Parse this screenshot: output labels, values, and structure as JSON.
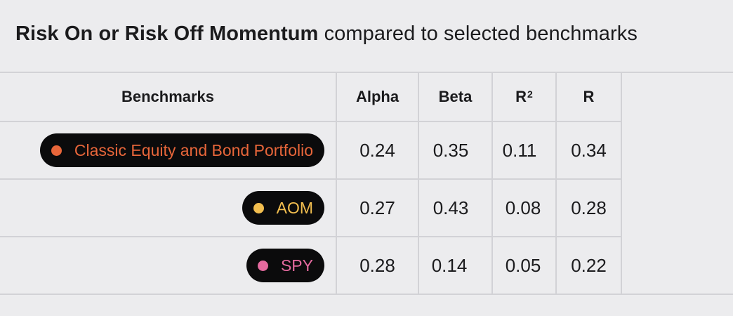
{
  "title": {
    "strong": "Risk On or Risk Off Momentum",
    "rest": " compared to selected benchmarks"
  },
  "table": {
    "headers": {
      "benchmarks": "Benchmarks",
      "alpha": "Alpha",
      "beta": "Beta",
      "r2_base": "R",
      "r2_sup": "2",
      "r": "R"
    },
    "rows": [
      {
        "name": "Classic Equity and Bond Portfolio",
        "color": "#e8663a",
        "alpha": "0.24",
        "beta": "0.35",
        "r2": "0.11",
        "r": "0.34"
      },
      {
        "name": "AOM",
        "color": "#f2be4f",
        "alpha": "0.27",
        "beta": "0.43",
        "r2": "0.08",
        "r": "0.28"
      },
      {
        "name": "SPY",
        "color": "#e46a9e",
        "alpha": "0.28",
        "beta": "0.14",
        "r2": "0.05",
        "r": "0.22"
      }
    ]
  }
}
